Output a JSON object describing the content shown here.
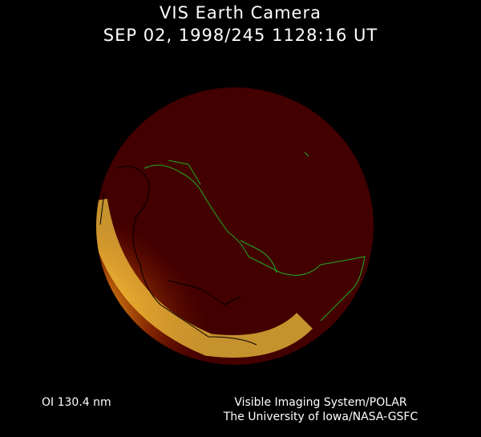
{
  "header": {
    "title": "VIS Earth Camera",
    "timestamp": "SEP 02, 1998/245 1128:16 UT"
  },
  "footer": {
    "wavelength": "OI  130.4 nm",
    "credit_line1": "Visible Imaging System/POLAR",
    "credit_line2": "The University of Iowa/NASA-GSFC"
  },
  "colors": {
    "background": "#000000",
    "disk": "#420000",
    "aurora": "#ffc030",
    "coastline_day": "#22aa22",
    "coastline_night": "#000000"
  }
}
